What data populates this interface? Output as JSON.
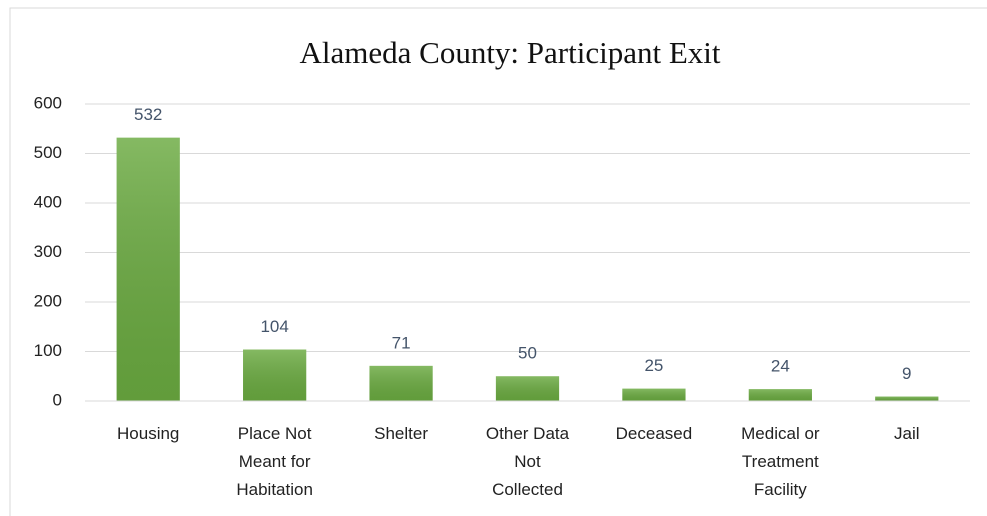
{
  "chart_data": {
    "type": "bar",
    "title": "Alameda County: Participant Exit",
    "categories": [
      "Housing",
      "Place Not Meant for Habitation",
      "Shelter",
      "Other Data Not Collected",
      "Deceased",
      "Medical or Treatment Facility",
      "Jail"
    ],
    "values": [
      532,
      104,
      71,
      50,
      25,
      24,
      9
    ],
    "color": "#6aaa40",
    "ylim": [
      0,
      600
    ],
    "yticks": [
      0,
      100,
      200,
      300,
      400,
      500,
      600
    ],
    "grid": true
  }
}
